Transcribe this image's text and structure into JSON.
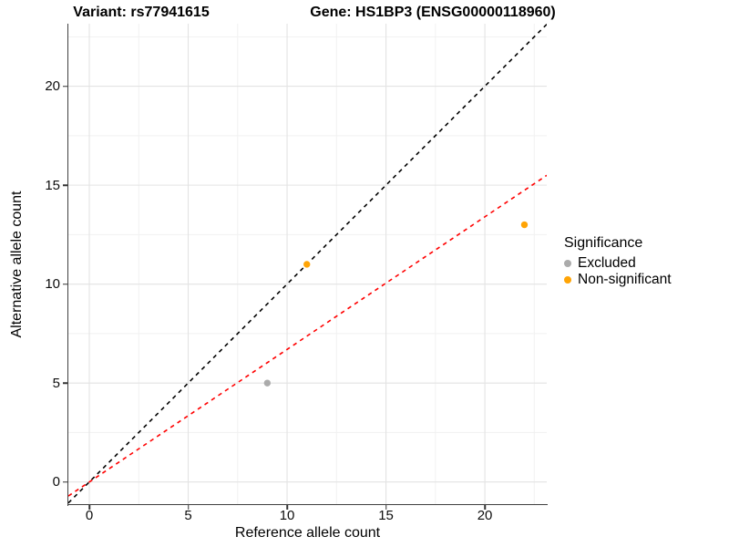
{
  "chart_data": {
    "type": "scatter",
    "titles": [
      "Variant: rs77941615",
      "Gene: HS1BP3 (ENSG00000118960)"
    ],
    "xlabel": "Reference allele count",
    "ylabel": "Alternative allele count",
    "xlim": [
      -1.06,
      23.13
    ],
    "ylim": [
      -1.12,
      23.16
    ],
    "x_ticks": [
      0,
      5,
      10,
      15,
      20
    ],
    "y_ticks": [
      0,
      5,
      10,
      15,
      20
    ],
    "x_minor_ticks": [
      2.5,
      7.5,
      12.5,
      17.5,
      22.5
    ],
    "y_minor_ticks": [
      2.5,
      7.5,
      12.5,
      17.5,
      22.5
    ],
    "grid": true,
    "legend_position": "right",
    "legend_title": "Significance",
    "series": [
      {
        "name": "Excluded",
        "color": "#ABABAB",
        "points": [
          {
            "x": 9,
            "y": 5
          }
        ]
      },
      {
        "name": "Non-significant",
        "color": "#FFA405",
        "points": [
          {
            "x": 11,
            "y": 11
          },
          {
            "x": 22,
            "y": 13
          }
        ]
      }
    ],
    "ablines": [
      {
        "name": "identity-line",
        "slope": 1,
        "intercept": 0,
        "color": "#000000",
        "style": "dashed"
      },
      {
        "name": "fit-line",
        "slope": 0.67,
        "intercept": 0,
        "color": "#FF0000",
        "style": "dashed"
      }
    ],
    "palette": {
      "grid_major": "#E3E3E3",
      "grid_minor": "#F1F1F1",
      "axis_line": "#404040",
      "tick_text": "#0D0D0D",
      "background": "#FFFFFF"
    }
  }
}
